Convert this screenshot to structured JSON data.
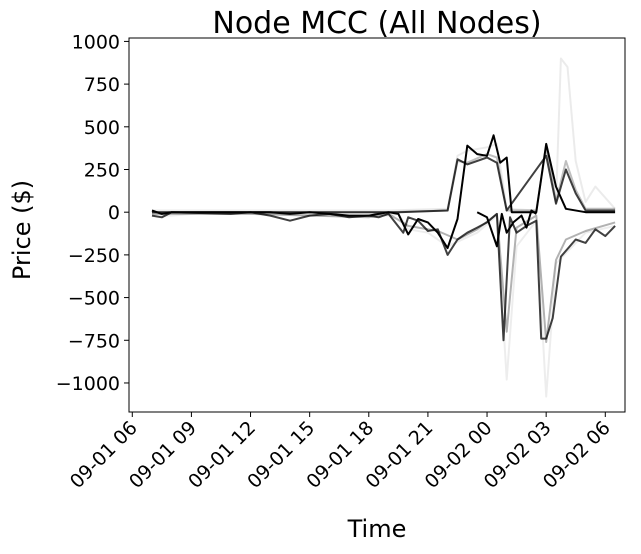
{
  "chart_data": {
    "type": "line",
    "title": "Node MCC (All Nodes)",
    "xlabel": "Time",
    "ylabel": "Price ($)",
    "x_ticks": [
      "09-01 06",
      "09-01 09",
      "09-01 12",
      "09-01 15",
      "09-01 18",
      "09-01 21",
      "09-02 00",
      "09-02 03",
      "09-02 06"
    ],
    "y_ticks": [
      1000,
      750,
      500,
      250,
      0,
      -250,
      -500,
      -750,
      -1000
    ],
    "xlim": [
      "2023-09-01 05:50",
      "2023-09-02 07:00"
    ],
    "ylim": [
      -1170,
      1020
    ],
    "grid": false,
    "legend": "none",
    "series_color": "#000000",
    "series": [
      {
        "opacity": 0.07,
        "points": [
          [
            "2023-09-01 07:00",
            -20
          ],
          [
            "2023-09-01 08:00",
            -20
          ],
          [
            "2023-09-01 10:00",
            0
          ],
          [
            "2023-09-01 16:00",
            -20
          ],
          [
            "2023-09-01 19:00",
            -20
          ],
          [
            "2023-09-01 19:30",
            -10
          ],
          [
            "2023-09-01 20:00",
            -100
          ],
          [
            "2023-09-01 21:00",
            -120
          ],
          [
            "2023-09-01 22:00",
            -200
          ],
          [
            "2023-09-01 23:30",
            -120
          ],
          [
            "2023-09-02 00:30",
            -20
          ],
          [
            "2023-09-02 01:00",
            -980
          ],
          [
            "2023-09-02 01:30",
            -200
          ],
          [
            "2023-09-02 02:30",
            -50
          ],
          [
            "2023-09-02 03:00",
            -1080
          ],
          [
            "2023-09-02 03:30",
            -300
          ],
          [
            "2023-09-02 05:00",
            -120
          ],
          [
            "2023-09-02 06:30",
            -80
          ]
        ]
      },
      {
        "opacity": 0.08,
        "points": [
          [
            "2023-09-01 07:00",
            10
          ],
          [
            "2023-09-01 19:00",
            10
          ],
          [
            "2023-09-01 22:00",
            20
          ],
          [
            "2023-09-01 22:30",
            330
          ],
          [
            "2023-09-01 23:00",
            360
          ],
          [
            "2023-09-02 00:00",
            380
          ],
          [
            "2023-09-02 00:30",
            400
          ],
          [
            "2023-09-02 01:00",
            20
          ],
          [
            "2023-09-02 02:30",
            10
          ],
          [
            "2023-09-02 03:00",
            390
          ],
          [
            "2023-09-02 03:30",
            60
          ],
          [
            "2023-09-02 03:45",
            900
          ],
          [
            "2023-09-02 04:05",
            850
          ],
          [
            "2023-09-02 04:30",
            300
          ],
          [
            "2023-09-02 05:00",
            60
          ],
          [
            "2023-09-02 05:30",
            150
          ],
          [
            "2023-09-02 06:30",
            20
          ]
        ]
      },
      {
        "opacity": 0.25,
        "points": [
          [
            "2023-09-01 07:00",
            0
          ],
          [
            "2023-09-01 19:00",
            0
          ],
          [
            "2023-09-01 22:00",
            10
          ],
          [
            "2023-09-01 22:30",
            300
          ],
          [
            "2023-09-01 23:00",
            290
          ],
          [
            "2023-09-02 00:00",
            340
          ],
          [
            "2023-09-02 00:30",
            320
          ],
          [
            "2023-09-02 01:00",
            10
          ],
          [
            "2023-09-02 02:30",
            10
          ],
          [
            "2023-09-02 03:00",
            380
          ],
          [
            "2023-09-02 03:30",
            60
          ],
          [
            "2023-09-02 04:00",
            300
          ],
          [
            "2023-09-02 04:30",
            130
          ],
          [
            "2023-09-02 05:00",
            20
          ],
          [
            "2023-09-02 06:30",
            20
          ]
        ]
      },
      {
        "opacity": 0.3,
        "points": [
          [
            "2023-09-01 07:00",
            -10
          ],
          [
            "2023-09-01 12:00",
            -10
          ],
          [
            "2023-09-01 18:00",
            -30
          ],
          [
            "2023-09-01 19:00",
            -10
          ],
          [
            "2023-09-01 20:00",
            -80
          ],
          [
            "2023-09-01 21:30",
            -110
          ],
          [
            "2023-09-01 22:30",
            -160
          ],
          [
            "2023-09-01 23:30",
            -100
          ],
          [
            "2023-09-02 00:30",
            -10
          ],
          [
            "2023-09-02 01:00",
            -700
          ],
          [
            "2023-09-02 01:30",
            -90
          ],
          [
            "2023-09-02 02:30",
            -20
          ],
          [
            "2023-09-02 03:00",
            -760
          ],
          [
            "2023-09-02 03:30",
            -280
          ],
          [
            "2023-09-02 04:00",
            -160
          ],
          [
            "2023-09-02 05:00",
            -110
          ],
          [
            "2023-09-02 06:30",
            -60
          ]
        ]
      },
      {
        "opacity": 0.75,
        "points": [
          [
            "2023-09-01 07:00",
            -20
          ],
          [
            "2023-09-01 07:30",
            -30
          ],
          [
            "2023-09-01 08:00",
            0
          ],
          [
            "2023-09-01 11:00",
            -10
          ],
          [
            "2023-09-01 12:00",
            0
          ],
          [
            "2023-09-01 13:00",
            -20
          ],
          [
            "2023-09-01 14:00",
            -50
          ],
          [
            "2023-09-01 15:00",
            -20
          ],
          [
            "2023-09-01 16:00",
            -10
          ],
          [
            "2023-09-01 17:00",
            -30
          ],
          [
            "2023-09-01 18:00",
            -20
          ],
          [
            "2023-09-01 18:30",
            -30
          ],
          [
            "2023-09-01 19:00",
            -10
          ],
          [
            "2023-09-01 19:45",
            -120
          ],
          [
            "2023-09-01 20:00",
            -30
          ],
          [
            "2023-09-01 20:30",
            -50
          ],
          [
            "2023-09-01 21:00",
            -110
          ],
          [
            "2023-09-01 21:30",
            -100
          ],
          [
            "2023-09-01 22:00",
            -250
          ],
          [
            "2023-09-01 22:30",
            -160
          ],
          [
            "2023-09-01 23:00",
            -120
          ],
          [
            "2023-09-01 23:30",
            -90
          ],
          [
            "2023-09-02 00:00",
            -60
          ],
          [
            "2023-09-02 00:30",
            -10
          ],
          [
            "2023-09-02 00:50",
            -750
          ],
          [
            "2023-09-02 01:10",
            -30
          ],
          [
            "2023-09-02 01:30",
            -120
          ],
          [
            "2023-09-02 02:00",
            -80
          ],
          [
            "2023-09-02 02:30",
            -50
          ],
          [
            "2023-09-02 02:45",
            -740
          ],
          [
            "2023-09-02 03:00",
            -740
          ],
          [
            "2023-09-02 03:20",
            -620
          ],
          [
            "2023-09-02 03:45",
            -260
          ],
          [
            "2023-09-02 04:30",
            -160
          ],
          [
            "2023-09-02 05:00",
            -180
          ],
          [
            "2023-09-02 05:30",
            -100
          ],
          [
            "2023-09-02 06:00",
            -140
          ],
          [
            "2023-09-02 06:30",
            -80
          ]
        ]
      },
      {
        "opacity": 0.75,
        "points": [
          [
            "2023-09-01 07:00",
            0
          ],
          [
            "2023-09-01 19:30",
            0
          ],
          [
            "2023-09-01 22:00",
            10
          ],
          [
            "2023-09-01 22:30",
            310
          ],
          [
            "2023-09-01 23:00",
            280
          ],
          [
            "2023-09-02 00:00",
            320
          ],
          [
            "2023-09-02 00:30",
            290
          ],
          [
            "2023-09-02 01:00",
            10
          ],
          [
            "2023-09-02 03:00",
            330
          ],
          [
            "2023-09-02 03:30",
            50
          ],
          [
            "2023-09-02 04:00",
            250
          ],
          [
            "2023-09-02 04:30",
            110
          ],
          [
            "2023-09-02 05:00",
            10
          ],
          [
            "2023-09-02 06:30",
            10
          ]
        ]
      },
      {
        "opacity": 1.0,
        "points": [
          [
            "2023-09-01 07:00",
            10
          ],
          [
            "2023-09-01 07:30",
            -10
          ],
          [
            "2023-09-01 08:00",
            0
          ],
          [
            "2023-09-01 13:00",
            0
          ],
          [
            "2023-09-01 14:00",
            -10
          ],
          [
            "2023-09-01 15:00",
            0
          ],
          [
            "2023-09-01 16:00",
            -10
          ],
          [
            "2023-09-01 17:00",
            -20
          ],
          [
            "2023-09-01 18:00",
            -20
          ],
          [
            "2023-09-01 18:30",
            -10
          ],
          [
            "2023-09-01 19:00",
            0
          ],
          [
            "2023-09-01 19:30",
            -10
          ],
          [
            "2023-09-01 20:00",
            -130
          ],
          [
            "2023-09-01 20:30",
            -40
          ],
          [
            "2023-09-01 21:00",
            -60
          ],
          [
            "2023-09-01 21:30",
            -120
          ],
          [
            "2023-09-01 22:00",
            -210
          ],
          [
            "2023-09-01 22:30",
            -40
          ],
          [
            "2023-09-01 23:00",
            390
          ],
          [
            "2023-09-01 23:30",
            340
          ],
          [
            "2023-09-02 00:00",
            330
          ],
          [
            "2023-09-02 00:20",
            450
          ],
          [
            "2023-09-02 00:40",
            290
          ],
          [
            "2023-09-02 01:00",
            320
          ],
          [
            "2023-09-02 01:15",
            0
          ],
          [
            "2023-09-02 02:30",
            0
          ],
          [
            "2023-09-02 03:00",
            400
          ],
          [
            "2023-09-02 03:30",
            150
          ],
          [
            "2023-09-02 04:00",
            20
          ],
          [
            "2023-09-02 05:00",
            0
          ],
          [
            "2023-09-02 06:30",
            0
          ]
        ]
      },
      {
        "opacity": 1.0,
        "points": [
          [
            "2023-09-01 23:30",
            0
          ],
          [
            "2023-09-02 00:00",
            -30
          ],
          [
            "2023-09-02 00:30",
            -200
          ],
          [
            "2023-09-02 00:45",
            -10
          ],
          [
            "2023-09-02 01:00",
            -120
          ],
          [
            "2023-09-02 01:20",
            -60
          ],
          [
            "2023-09-02 01:45",
            -20
          ],
          [
            "2023-09-02 02:00",
            -90
          ],
          [
            "2023-09-02 02:15",
            10
          ],
          [
            "2023-09-02 02:30",
            -10
          ]
        ]
      }
    ]
  }
}
